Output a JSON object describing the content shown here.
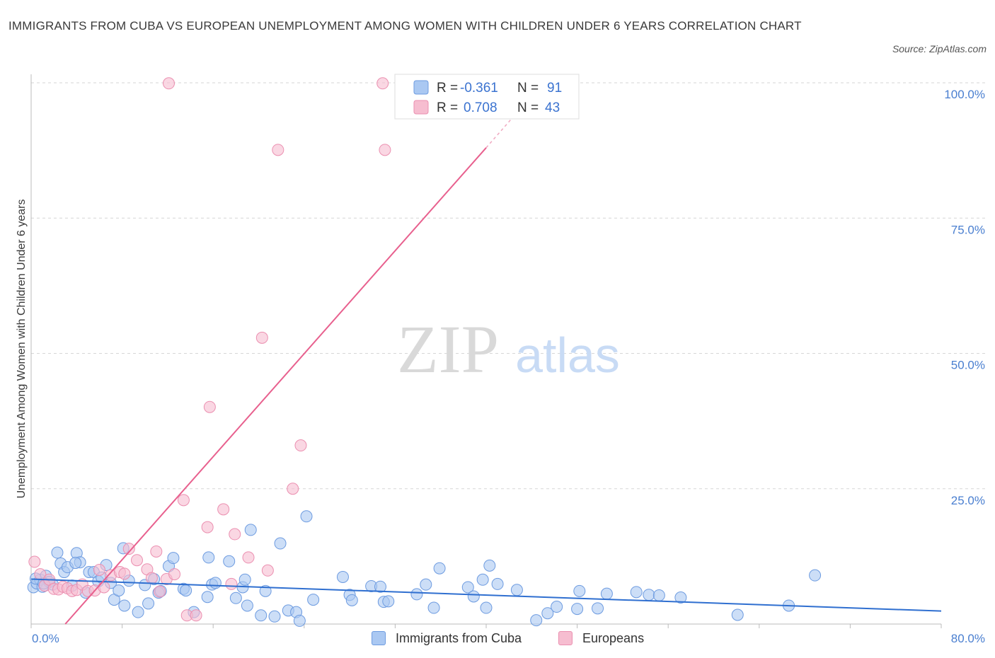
{
  "title": "IMMIGRANTS FROM CUBA VS EUROPEAN UNEMPLOYMENT AMONG WOMEN WITH CHILDREN UNDER 6 YEARS CORRELATION CHART",
  "source": "Source: ZipAtlas.com",
  "watermark": {
    "zip": "ZIP",
    "atlas": "atlas"
  },
  "colors": {
    "cuba_fill": "#aac8f2",
    "cuba_stroke": "#6d9be0",
    "cuba_line": "#2f6fd0",
    "euro_fill": "#f6bdd0",
    "euro_stroke": "#eb8fb0",
    "euro_line": "#e8608e",
    "grid": "#d6d6d6",
    "axis_text": "#4a7fd0"
  },
  "legend_top": {
    "rows": [
      {
        "r_label": "R =",
        "r_value": "-0.361",
        "n_label": "N =",
        "n_value": "91"
      },
      {
        "r_label": "R =",
        "r_value": "0.708",
        "n_label": "N =",
        "n_value": "43"
      }
    ]
  },
  "legend_bottom": {
    "items": [
      "Immigrants from Cuba",
      "Europeans"
    ]
  },
  "chart_data": {
    "type": "scatter",
    "title": "IMMIGRANTS FROM CUBA VS EUROPEAN UNEMPLOYMENT AMONG WOMEN WITH CHILDREN UNDER 6 YEARS CORRELATION CHART",
    "xlabel": "",
    "ylabel": "Unemployment Among Women with Children Under 6 years",
    "xlim": [
      0,
      80
    ],
    "ylim": [
      0,
      100
    ],
    "x_ticks": [
      "0.0%",
      "80.0%"
    ],
    "y_ticks": [
      "25.0%",
      "50.0%",
      "75.0%",
      "100.0%"
    ],
    "y_tick_values": [
      25,
      50,
      75,
      100
    ],
    "grid": true,
    "legend_position": "top-center",
    "series": [
      {
        "name": "Immigrants from Cuba",
        "R": -0.361,
        "N": 91,
        "trend": {
          "x": [
            0,
            80
          ],
          "y": [
            8.3,
            2.4
          ]
        },
        "points": [
          [
            0.2,
            6.8
          ],
          [
            0.5,
            7.5
          ],
          [
            0.8,
            8.2
          ],
          [
            1.0,
            6.9
          ],
          [
            1.3,
            8.9
          ],
          [
            1.6,
            7.8
          ],
          [
            1.9,
            7.3
          ],
          [
            2.3,
            13.2
          ],
          [
            2.6,
            11.2
          ],
          [
            2.9,
            9.6
          ],
          [
            3.2,
            10.5
          ],
          [
            3.6,
            7.1
          ],
          [
            4.0,
            13.1
          ],
          [
            4.3,
            11.4
          ],
          [
            4.8,
            5.8
          ],
          [
            5.1,
            9.6
          ],
          [
            5.5,
            9.6
          ],
          [
            5.9,
            7.9
          ],
          [
            6.2,
            8.6
          ],
          [
            6.6,
            10.9
          ],
          [
            7.0,
            7.6
          ],
          [
            7.3,
            4.5
          ],
          [
            7.7,
            6.2
          ],
          [
            8.2,
            3.4
          ],
          [
            8.1,
            14.0
          ],
          [
            8.6,
            8.0
          ],
          [
            9.4,
            2.2
          ],
          [
            10.0,
            7.2
          ],
          [
            10.3,
            3.8
          ],
          [
            10.8,
            8.3
          ],
          [
            11.2,
            5.8
          ],
          [
            11.4,
            6.1
          ],
          [
            12.1,
            10.7
          ],
          [
            12.5,
            12.2
          ],
          [
            13.4,
            6.5
          ],
          [
            13.6,
            6.2
          ],
          [
            14.3,
            2.2
          ],
          [
            15.5,
            5.0
          ],
          [
            15.6,
            12.3
          ],
          [
            15.9,
            7.3
          ],
          [
            16.2,
            7.6
          ],
          [
            17.4,
            11.6
          ],
          [
            18.0,
            4.8
          ],
          [
            18.6,
            6.8
          ],
          [
            18.8,
            8.2
          ],
          [
            19.0,
            3.4
          ],
          [
            19.3,
            17.4
          ],
          [
            20.2,
            1.6
          ],
          [
            20.6,
            6.1
          ],
          [
            21.4,
            1.4
          ],
          [
            21.9,
            14.9
          ],
          [
            22.6,
            2.5
          ],
          [
            23.3,
            2.2
          ],
          [
            23.6,
            0.6
          ],
          [
            24.2,
            19.9
          ],
          [
            24.8,
            4.5
          ],
          [
            27.4,
            8.7
          ],
          [
            28.0,
            5.4
          ],
          [
            28.2,
            4.4
          ],
          [
            29.9,
            7.0
          ],
          [
            30.7,
            6.9
          ],
          [
            31.0,
            4.1
          ],
          [
            31.4,
            4.2
          ],
          [
            33.9,
            5.5
          ],
          [
            34.7,
            7.3
          ],
          [
            35.4,
            3.0
          ],
          [
            35.9,
            10.3
          ],
          [
            38.4,
            6.8
          ],
          [
            38.9,
            5.1
          ],
          [
            39.7,
            8.2
          ],
          [
            40.0,
            3.0
          ],
          [
            40.3,
            10.8
          ],
          [
            41.0,
            7.4
          ],
          [
            42.7,
            6.3
          ],
          [
            44.4,
            0.7
          ],
          [
            45.4,
            2.0
          ],
          [
            46.2,
            3.2
          ],
          [
            48.0,
            2.8
          ],
          [
            48.2,
            6.1
          ],
          [
            49.8,
            2.9
          ],
          [
            50.6,
            5.6
          ],
          [
            53.2,
            5.9
          ],
          [
            54.3,
            5.4
          ],
          [
            55.2,
            5.3
          ],
          [
            57.1,
            4.9
          ],
          [
            62.1,
            1.7
          ],
          [
            66.6,
            3.4
          ],
          [
            68.9,
            9.0
          ],
          [
            0.4,
            8.4
          ],
          [
            1.1,
            7.5
          ],
          [
            3.9,
            11.3
          ]
        ]
      },
      {
        "name": "Europeans",
        "R": 0.708,
        "N": 43,
        "trend": {
          "x": [
            3.0,
            40.0
          ],
          "y": [
            0.0,
            88.0
          ]
        },
        "trend_dashed": {
          "x": [
            40.0,
            42.5
          ],
          "y": [
            88.0,
            94.0
          ]
        },
        "points": [
          [
            0.3,
            11.5
          ],
          [
            0.8,
            9.2
          ],
          [
            1.2,
            7.1
          ],
          [
            1.6,
            8.2
          ],
          [
            2.0,
            6.5
          ],
          [
            2.4,
            6.4
          ],
          [
            2.8,
            6.9
          ],
          [
            3.2,
            6.6
          ],
          [
            3.6,
            6.1
          ],
          [
            4.0,
            6.3
          ],
          [
            4.5,
            7.3
          ],
          [
            5.0,
            6.1
          ],
          [
            5.6,
            6.2
          ],
          [
            6.0,
            10.0
          ],
          [
            6.4,
            6.8
          ],
          [
            7.0,
            9.0
          ],
          [
            7.8,
            9.6
          ],
          [
            8.2,
            9.3
          ],
          [
            8.6,
            13.9
          ],
          [
            9.3,
            11.8
          ],
          [
            10.2,
            10.1
          ],
          [
            10.6,
            8.5
          ],
          [
            11.0,
            13.4
          ],
          [
            11.3,
            6.0
          ],
          [
            11.9,
            8.3
          ],
          [
            12.6,
            9.2
          ],
          [
            12.1,
            99.9
          ],
          [
            13.4,
            22.9
          ],
          [
            13.7,
            1.6
          ],
          [
            14.5,
            1.6
          ],
          [
            15.5,
            17.9
          ],
          [
            15.7,
            40.1
          ],
          [
            16.9,
            21.2
          ],
          [
            17.6,
            7.4
          ],
          [
            17.9,
            16.6
          ],
          [
            19.1,
            12.3
          ],
          [
            20.3,
            52.9
          ],
          [
            20.8,
            9.9
          ],
          [
            21.7,
            87.6
          ],
          [
            23.0,
            25.0
          ],
          [
            23.7,
            33.0
          ],
          [
            30.9,
            99.9
          ],
          [
            31.1,
            87.6
          ]
        ]
      }
    ]
  }
}
